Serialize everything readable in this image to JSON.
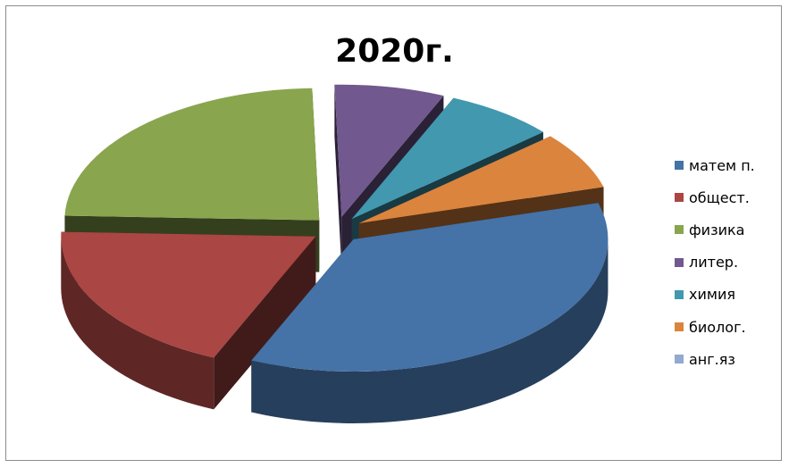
{
  "chart_data": {
    "type": "pie",
    "title": "2020г.",
    "legend_position": "right",
    "three_d": true,
    "exploded": true,
    "categories": [
      "матем п.",
      "общест.",
      "физика",
      "литер.",
      "химия",
      "биолог.",
      "анг.яз"
    ],
    "values": [
      36,
      19,
      24,
      7,
      7,
      7,
      0
    ],
    "colors": [
      "#4572A7",
      "#AA4643",
      "#89A54E",
      "#71588F",
      "#4198AF",
      "#DB843D",
      "#93A9CF"
    ]
  }
}
